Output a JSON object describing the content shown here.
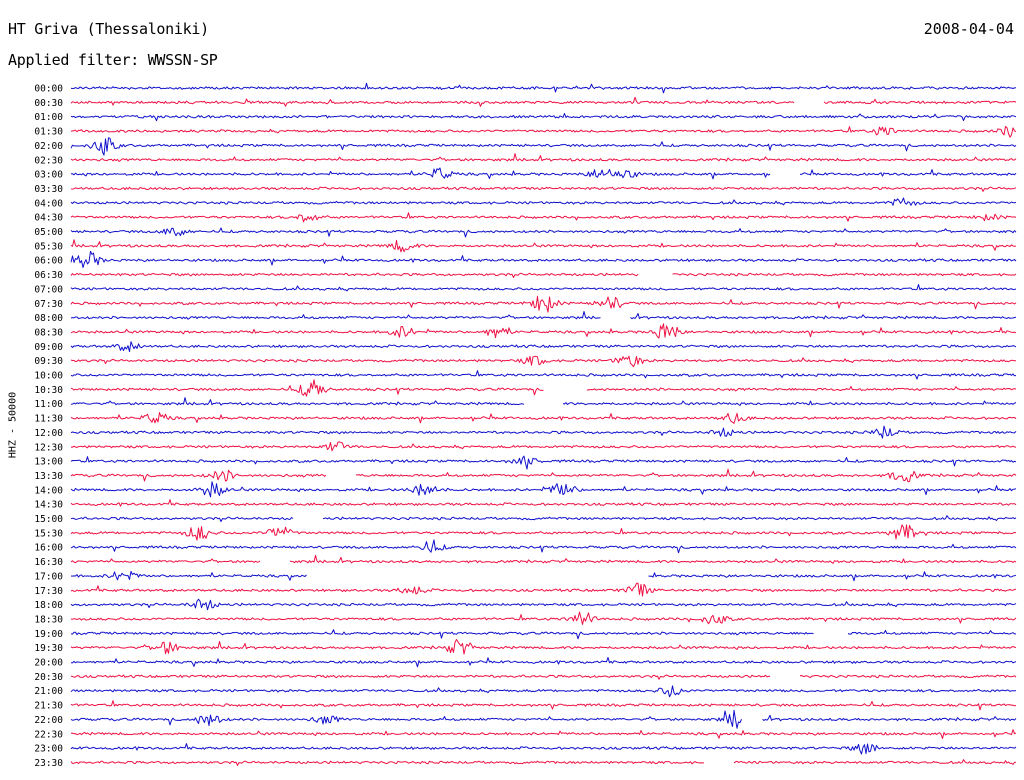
{
  "header": {
    "station": "HT Griva (Thessaloniki)",
    "date": "2008-04-04",
    "filter": "Applied filter: WWSSN-SP"
  },
  "colors": {
    "even_rows": "#1010cc",
    "odd_rows": "#ee1144"
  },
  "chart_data": {
    "type": "line",
    "title": "HT Griva (Thessaloniki)",
    "subtitle": "Applied filter: WWSSN-SP",
    "date": "2008-04-04",
    "ylabel": "HHZ - 50000",
    "grid": false,
    "traces": [
      {
        "label": "00:00",
        "color": "blue",
        "events": [],
        "gaps": []
      },
      {
        "label": "00:30",
        "color": "red",
        "events": [],
        "gaps": [
          [
            0.765,
            0.795
          ]
        ]
      },
      {
        "label": "01:00",
        "color": "blue",
        "events": [],
        "gaps": []
      },
      {
        "label": "01:30",
        "color": "red",
        "events": [
          [
            0.86,
            0.5
          ],
          [
            0.995,
            0.7
          ]
        ],
        "gaps": []
      },
      {
        "label": "02:00",
        "color": "blue",
        "events": [
          [
            0.035,
            1.0
          ]
        ],
        "gaps": []
      },
      {
        "label": "02:30",
        "color": "red",
        "events": [],
        "gaps": []
      },
      {
        "label": "03:00",
        "color": "blue",
        "events": [
          [
            0.39,
            0.6
          ],
          [
            0.56,
            0.6
          ],
          [
            0.585,
            0.5
          ]
        ],
        "gaps": [
          [
            0.74,
            0.77
          ]
        ]
      },
      {
        "label": "03:30",
        "color": "red",
        "events": [],
        "gaps": []
      },
      {
        "label": "04:00",
        "color": "blue",
        "events": [
          [
            0.88,
            0.5
          ]
        ],
        "gaps": []
      },
      {
        "label": "04:30",
        "color": "red",
        "events": [
          [
            0.25,
            0.5
          ],
          [
            0.97,
            0.3
          ]
        ],
        "gaps": []
      },
      {
        "label": "05:00",
        "color": "blue",
        "events": [
          [
            0.11,
            0.5
          ]
        ],
        "gaps": []
      },
      {
        "label": "05:30",
        "color": "red",
        "events": [
          [
            0.35,
            0.6
          ]
        ],
        "gaps": []
      },
      {
        "label": "06:00",
        "color": "blue",
        "events": [
          [
            0.018,
            0.9
          ]
        ],
        "gaps": []
      },
      {
        "label": "06:30",
        "color": "red",
        "events": [],
        "gaps": [
          [
            0.6,
            0.635
          ]
        ]
      },
      {
        "label": "07:00",
        "color": "blue",
        "events": [],
        "gaps": []
      },
      {
        "label": "07:30",
        "color": "red",
        "events": [
          [
            0.5,
            1.0
          ],
          [
            0.57,
            0.7
          ]
        ],
        "gaps": []
      },
      {
        "label": "08:00",
        "color": "blue",
        "events": [],
        "gaps": [
          [
            0.56,
            0.59
          ]
        ]
      },
      {
        "label": "08:30",
        "color": "red",
        "events": [
          [
            0.35,
            0.6
          ],
          [
            0.45,
            0.6
          ],
          [
            0.63,
            1.0
          ]
        ],
        "gaps": []
      },
      {
        "label": "09:00",
        "color": "blue",
        "events": [
          [
            0.06,
            0.5
          ]
        ],
        "gaps": []
      },
      {
        "label": "09:30",
        "color": "red",
        "events": [
          [
            0.49,
            0.5
          ],
          [
            0.59,
            0.7
          ]
        ],
        "gaps": []
      },
      {
        "label": "10:00",
        "color": "blue",
        "events": [],
        "gaps": []
      },
      {
        "label": "10:30",
        "color": "red",
        "events": [
          [
            0.255,
            1.0
          ]
        ],
        "gaps": [
          [
            0.5,
            0.545
          ]
        ]
      },
      {
        "label": "11:00",
        "color": "blue",
        "events": [],
        "gaps": [
          [
            0.48,
            0.52
          ]
        ]
      },
      {
        "label": "11:30",
        "color": "red",
        "events": [
          [
            0.09,
            0.6
          ],
          [
            0.7,
            0.5
          ]
        ],
        "gaps": []
      },
      {
        "label": "12:00",
        "color": "blue",
        "events": [
          [
            0.69,
            0.4
          ],
          [
            0.86,
            0.6
          ]
        ],
        "gaps": []
      },
      {
        "label": "12:30",
        "color": "red",
        "events": [
          [
            0.28,
            0.5
          ]
        ],
        "gaps": []
      },
      {
        "label": "13:00",
        "color": "blue",
        "events": [
          [
            0.48,
            0.6
          ]
        ],
        "gaps": []
      },
      {
        "label": "13:30",
        "color": "red",
        "events": [
          [
            0.16,
            0.6
          ],
          [
            0.88,
            0.8
          ]
        ],
        "gaps": [
          [
            0.27,
            0.3
          ]
        ]
      },
      {
        "label": "14:00",
        "color": "blue",
        "events": [
          [
            0.15,
            0.8
          ],
          [
            0.375,
            0.8
          ],
          [
            0.52,
            0.8
          ]
        ],
        "gaps": []
      },
      {
        "label": "14:30",
        "color": "red",
        "events": [],
        "gaps": []
      },
      {
        "label": "15:00",
        "color": "blue",
        "events": [],
        "gaps": [
          [
            0.235,
            0.265
          ]
        ]
      },
      {
        "label": "15:30",
        "color": "red",
        "events": [
          [
            0.135,
            0.8
          ],
          [
            0.22,
            0.7
          ],
          [
            0.88,
            0.9
          ]
        ],
        "gaps": []
      },
      {
        "label": "16:00",
        "color": "blue",
        "events": [
          [
            0.38,
            0.6
          ]
        ],
        "gaps": []
      },
      {
        "label": "16:30",
        "color": "red",
        "events": [],
        "gaps": [
          [
            0.2,
            0.23
          ]
        ]
      },
      {
        "label": "17:00",
        "color": "blue",
        "events": [
          [
            0.055,
            0.6
          ]
        ],
        "gaps": [
          [
            0.25,
            0.61
          ]
        ]
      },
      {
        "label": "17:30",
        "color": "red",
        "events": [
          [
            0.36,
            0.5
          ],
          [
            0.6,
            0.7
          ]
        ],
        "gaps": []
      },
      {
        "label": "18:00",
        "color": "blue",
        "events": [
          [
            0.14,
            0.6
          ]
        ],
        "gaps": []
      },
      {
        "label": "18:30",
        "color": "red",
        "events": [
          [
            0.54,
            0.8
          ],
          [
            0.68,
            0.6
          ]
        ],
        "gaps": []
      },
      {
        "label": "19:00",
        "color": "blue",
        "events": [],
        "gaps": [
          [
            0.785,
            0.82
          ]
        ]
      },
      {
        "label": "19:30",
        "color": "red",
        "events": [
          [
            0.1,
            0.7
          ],
          [
            0.41,
            0.8
          ]
        ],
        "gaps": []
      },
      {
        "label": "20:00",
        "color": "blue",
        "events": [],
        "gaps": []
      },
      {
        "label": "20:30",
        "color": "red",
        "events": [],
        "gaps": [
          [
            0.74,
            0.77
          ]
        ]
      },
      {
        "label": "21:00",
        "color": "blue",
        "events": [
          [
            0.635,
            0.6
          ]
        ],
        "gaps": []
      },
      {
        "label": "21:30",
        "color": "red",
        "events": [],
        "gaps": []
      },
      {
        "label": "22:00",
        "color": "blue",
        "events": [
          [
            0.145,
            0.7
          ],
          [
            0.27,
            0.5
          ],
          [
            0.705,
            1.0
          ]
        ],
        "gaps": [
          [
            0.71,
            0.73
          ]
        ]
      },
      {
        "label": "22:30",
        "color": "red",
        "events": [],
        "gaps": []
      },
      {
        "label": "23:00",
        "color": "blue",
        "events": [
          [
            0.84,
            0.6
          ]
        ],
        "gaps": []
      },
      {
        "label": "23:30",
        "color": "red",
        "events": [],
        "gaps": [
          [
            0.67,
            0.7
          ]
        ]
      }
    ]
  }
}
